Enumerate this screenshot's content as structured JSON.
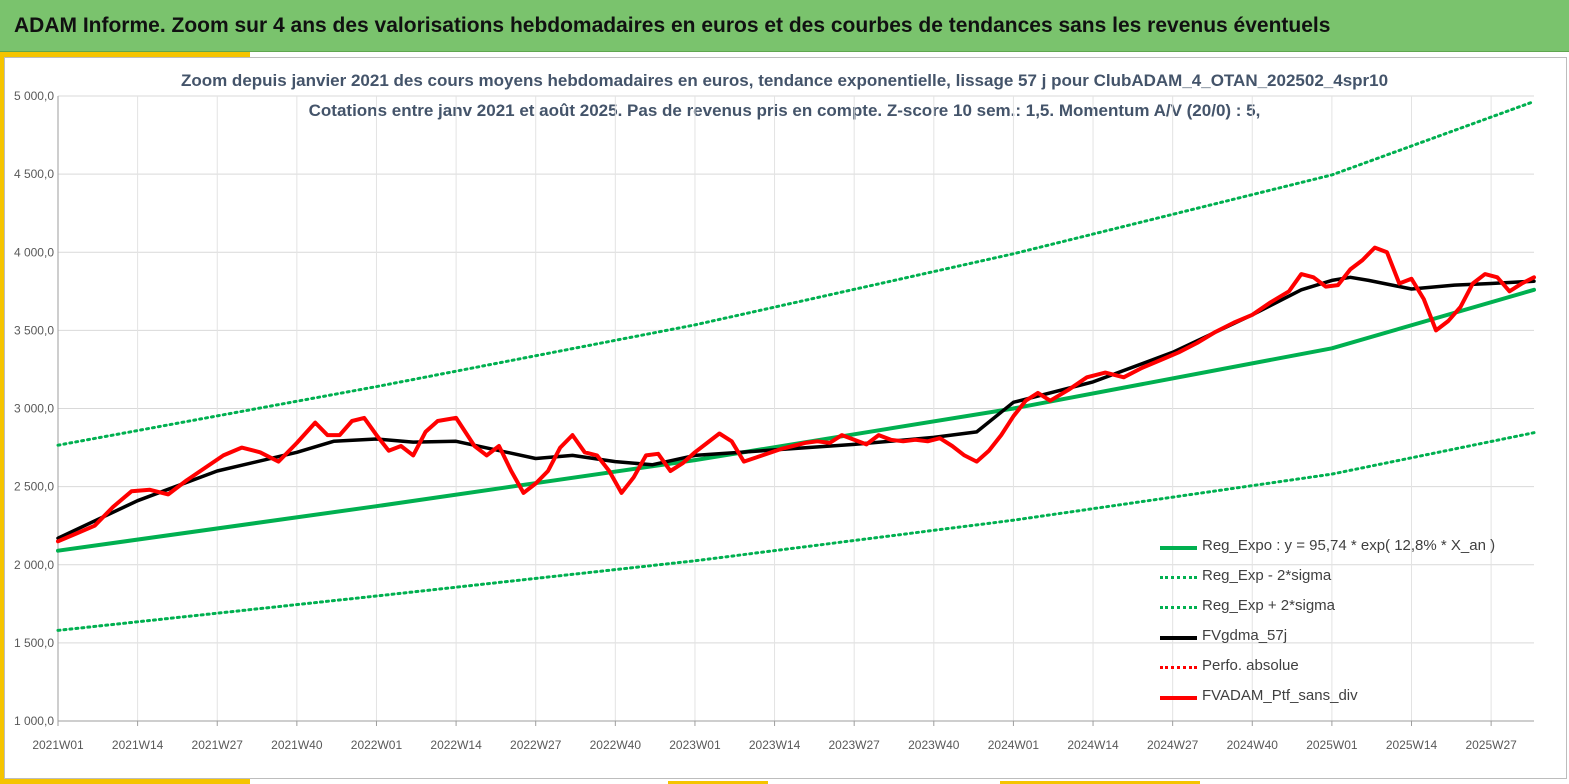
{
  "header": {
    "title": "ADAM Informe. Zoom sur 4 ans des valorisations hebdomadaires en euros et des courbes de tendances sans les revenus éventuels"
  },
  "colors": {
    "banner": "#7ac36d",
    "accent": "#f5c400",
    "trend": "#00b050",
    "sma": "#000000",
    "portfolio": "#ff0000"
  },
  "chart_data": {
    "type": "line",
    "title": "Zoom depuis janvier 2021 des cours moyens hebdomadaires  en euros, tendance exponentielle, lissage 57 j pour ClubADAM_4_OTAN_202502_4spr10",
    "subtitle": "Cotations  entre janv 2021 et août 2025. Pas de revenus pris en compte. Z-score 10 sem.: 1,5. Momentum  A/V (20/0) : 5,",
    "ylim": [
      1000,
      5000
    ],
    "yticks": [
      "1 000,0",
      "1 500,0",
      "2 000,0",
      "2 500,0",
      "3 000,0",
      "3 500,0",
      "4 000,0",
      "4 500,0",
      "5 000,0"
    ],
    "xticks": [
      "2021W01",
      "2021W14",
      "2021W27",
      "2021W40",
      "2022W01",
      "2022W14",
      "2022W27",
      "2022W40",
      "2023W01",
      "2023W14",
      "2023W27",
      "2023W40",
      "2024W01",
      "2024W14",
      "2024W27",
      "2024W40",
      "2025W01",
      "2025W14",
      "2025W27"
    ],
    "grid": true,
    "legend_position": "bottom-right",
    "x_index_range": [
      0,
      241
    ],
    "series": [
      {
        "name": "Reg_Expo : y = 95,74 * exp( 12,8% *  X_an )",
        "style": "solid-thick",
        "color": "#00b050",
        "x": [
          0,
          52,
          104,
          156,
          208,
          241
        ],
        "values": [
          2090,
          2375,
          2670,
          3000,
          3385,
          3760
        ]
      },
      {
        "name": "Reg_Exp - 2*sigma",
        "style": "dotted",
        "color": "#00b050",
        "x": [
          0,
          52,
          104,
          156,
          208,
          241
        ],
        "values": [
          1580,
          1800,
          2025,
          2285,
          2580,
          2845
        ]
      },
      {
        "name": "Reg_Exp + 2*sigma",
        "style": "dotted",
        "color": "#00b050",
        "x": [
          0,
          52,
          104,
          156,
          208,
          241
        ],
        "values": [
          2765,
          3140,
          3535,
          3990,
          4495,
          4965
        ]
      },
      {
        "name": "FVgdma_57j",
        "style": "solid",
        "color": "#000000",
        "x": [
          0,
          13,
          26,
          39,
          45,
          52,
          58,
          65,
          78,
          84,
          91,
          97,
          104,
          117,
          130,
          143,
          150,
          156,
          169,
          182,
          195,
          203,
          208,
          211,
          214,
          221,
          228,
          234,
          241
        ],
        "values": [
          2170,
          2410,
          2600,
          2720,
          2790,
          2805,
          2785,
          2790,
          2680,
          2700,
          2660,
          2640,
          2700,
          2735,
          2770,
          2815,
          2850,
          3040,
          3170,
          3360,
          3600,
          3760,
          3820,
          3840,
          3820,
          3765,
          3790,
          3800,
          3815
        ]
      },
      {
        "name": "Perfo. absolue",
        "style": "dotted",
        "color": "#ff0000",
        "x": [],
        "values": []
      },
      {
        "name": "FVADAM_Ptf_sans_div",
        "style": "solid-thick",
        "color": "#ff0000",
        "x": [
          0,
          3,
          6,
          9,
          12,
          15,
          18,
          21,
          24,
          27,
          30,
          33,
          36,
          39,
          42,
          44,
          46,
          48,
          50,
          52,
          54,
          56,
          58,
          60,
          62,
          65,
          68,
          70,
          72,
          74,
          76,
          78,
          80,
          82,
          84,
          86,
          88,
          90,
          92,
          94,
          96,
          98,
          100,
          102,
          104,
          106,
          108,
          110,
          112,
          115,
          118,
          120,
          122,
          124,
          126,
          128,
          130,
          132,
          134,
          136,
          138,
          140,
          142,
          144,
          146,
          148,
          150,
          152,
          154,
          156,
          158,
          160,
          162,
          165,
          168,
          171,
          174,
          177,
          180,
          183,
          186,
          189,
          192,
          195,
          198,
          201,
          203,
          205,
          207,
          209,
          211,
          213,
          215,
          217,
          219,
          221,
          223,
          225,
          227,
          229,
          231,
          233,
          235,
          237,
          239,
          241
        ],
        "values": [
          2150,
          2200,
          2250,
          2370,
          2470,
          2480,
          2450,
          2540,
          2620,
          2700,
          2750,
          2720,
          2660,
          2780,
          2910,
          2830,
          2830,
          2920,
          2940,
          2830,
          2730,
          2760,
          2700,
          2850,
          2920,
          2940,
          2760,
          2700,
          2760,
          2600,
          2460,
          2520,
          2600,
          2750,
          2830,
          2720,
          2700,
          2600,
          2460,
          2560,
          2700,
          2710,
          2600,
          2650,
          2720,
          2780,
          2840,
          2790,
          2660,
          2700,
          2740,
          2760,
          2780,
          2790,
          2780,
          2830,
          2800,
          2770,
          2830,
          2800,
          2790,
          2800,
          2790,
          2810,
          2760,
          2700,
          2660,
          2730,
          2830,
          2950,
          3050,
          3100,
          3050,
          3120,
          3200,
          3230,
          3200,
          3260,
          3310,
          3360,
          3420,
          3490,
          3550,
          3600,
          3680,
          3750,
          3860,
          3840,
          3780,
          3790,
          3890,
          3950,
          4030,
          4000,
          3800,
          3830,
          3700,
          3500,
          3560,
          3650,
          3800,
          3860,
          3840,
          3750,
          3800,
          3840
        ]
      }
    ]
  }
}
